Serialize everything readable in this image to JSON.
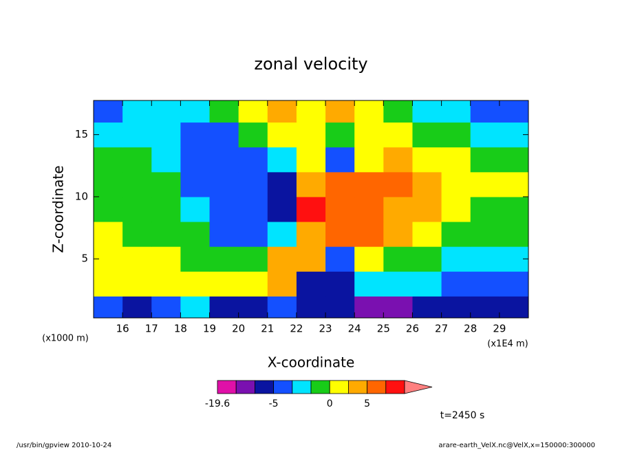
{
  "chart_data": {
    "type": "contour",
    "title": "zonal velocity",
    "x_label": "X-coordinate",
    "y_label": "Z-coordinate",
    "x_unit_left": "(x1000 m)",
    "x_unit_right": "(x1E4 m)",
    "time_label": "t=2450 s",
    "footer_left": "/usr/bin/gpview   2010-10-24",
    "footer_right": "arare-earth_VelX.nc@VelX,x=150000:300000",
    "xlim": [
      15,
      30
    ],
    "ylim": [
      0.25,
      17.75
    ],
    "xticks": [
      16,
      17,
      18,
      19,
      20,
      21,
      22,
      23,
      24,
      25,
      26,
      27,
      28,
      29
    ],
    "yticks": [
      5,
      10,
      15
    ],
    "x": [
      15.5,
      16.5,
      17.5,
      18.5,
      19.5,
      20.5,
      21.5,
      22.5,
      23.5,
      24.5,
      25.5,
      26.5,
      27.5,
      28.5,
      29.5
    ],
    "y": [
      1,
      3,
      5,
      7,
      9,
      11,
      13,
      15,
      17
    ],
    "z": [
      [
        -3,
        -7,
        -3,
        -1.5,
        -7,
        -7,
        -3,
        -7,
        -7,
        -12,
        -12,
        -7,
        -7,
        -7,
        -7
      ],
      [
        1,
        1,
        1,
        1,
        1,
        1,
        3,
        -7,
        -7,
        -1.5,
        -1.5,
        -1.5,
        -3,
        -3,
        -3
      ],
      [
        1,
        1,
        1,
        -0.5,
        -0.5,
        -0.5,
        3,
        3,
        -3,
        1,
        -0.5,
        -0.5,
        -1.5,
        -1.5,
        -1.5
      ],
      [
        1,
        -0.5,
        -0.5,
        -0.5,
        -3,
        -3,
        -1.5,
        3,
        7,
        7,
        3,
        1,
        -0.5,
        -0.5,
        -0.5
      ],
      [
        -0.5,
        -0.5,
        -0.5,
        -1.5,
        -3,
        -3,
        -7,
        12,
        7,
        7,
        3,
        3,
        1,
        -0.5,
        -0.5
      ],
      [
        -0.5,
        -0.5,
        -0.5,
        -3,
        -3,
        -3,
        -7,
        3,
        7,
        7,
        7,
        3,
        1,
        1,
        1
      ],
      [
        -0.5,
        -0.5,
        -1.5,
        -3,
        -3,
        -3,
        -1.5,
        1,
        -3,
        1,
        3,
        1,
        1,
        -0.5,
        -0.5
      ],
      [
        -1.5,
        -1.5,
        -1.5,
        -3,
        -3,
        -0.5,
        1,
        1,
        -0.5,
        1,
        1,
        -0.5,
        -0.5,
        -1.5,
        -1.5
      ],
      [
        -3,
        -1.5,
        -1.5,
        -1.5,
        -0.5,
        1,
        3,
        1,
        3,
        1,
        -0.5,
        -1.5,
        -1.5,
        -3,
        -3
      ]
    ],
    "levels": [
      -19.6,
      -15,
      -10,
      -5,
      -2,
      -1,
      0,
      2,
      5,
      10,
      15
    ],
    "colors": [
      "#e010a8",
      "#7a10b0",
      "#0a14a0",
      "#1450ff",
      "#00e4ff",
      "#18cc18",
      "#ffff00",
      "#ffaa00",
      "#ff6600",
      "#ff1010"
    ],
    "over_color": "#ff8080",
    "colorbar_ticks": [
      -19.6,
      -5,
      0,
      5
    ]
  }
}
